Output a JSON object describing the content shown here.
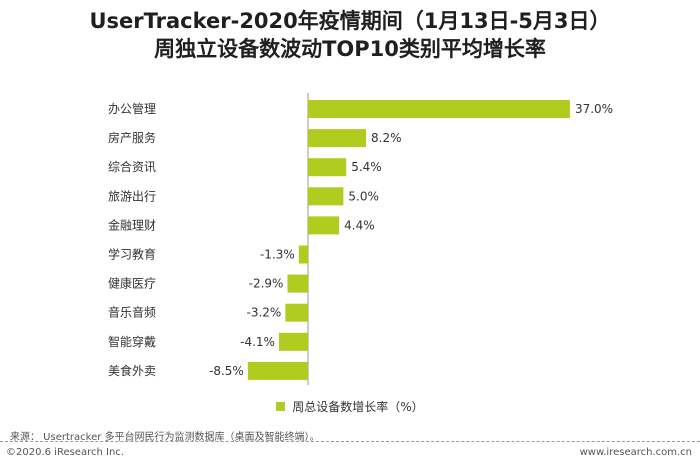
{
  "title_line1": "UserTracker-2020年疫情期间（1月13日-5月3日）",
  "title_line2": "周独立设备数波动TOP10类别平均增长率",
  "legend_label": "周总设备数增长率（%）",
  "source": "来源：  Usertracker 多平台网民行为监测数据库（桌面及智能终端）。",
  "copyright": "©2020.6 iResearch Inc.",
  "website": "www.iresearch.com.cn",
  "colors": {
    "bar": "#b0cc1f",
    "axis": "#999999"
  },
  "chart_data": {
    "type": "bar",
    "orientation": "horizontal",
    "categories": [
      "办公管理",
      "房产服务",
      "综合资讯",
      "旅游出行",
      "金融理财",
      "学习教育",
      "健康医疗",
      "音乐音频",
      "智能穿戴",
      "美食外卖"
    ],
    "values": [
      37.0,
      8.2,
      5.4,
      5.0,
      4.4,
      -1.3,
      -2.9,
      -3.2,
      -4.1,
      -8.5
    ],
    "value_labels": [
      "37.0%",
      "8.2%",
      "5.4%",
      "5.0%",
      "4.4%",
      "-1.3%",
      "-2.9%",
      "-3.2%",
      "-4.1%",
      "-8.5%"
    ],
    "series": [
      {
        "name": "周总设备数增长率（%）",
        "values": [
          37.0,
          8.2,
          5.4,
          5.0,
          4.4,
          -1.3,
          -2.9,
          -3.2,
          -4.1,
          -8.5
        ]
      }
    ],
    "xlim": [
      -8.5,
      37.0
    ],
    "grid": false,
    "legend_position": "bottom"
  }
}
